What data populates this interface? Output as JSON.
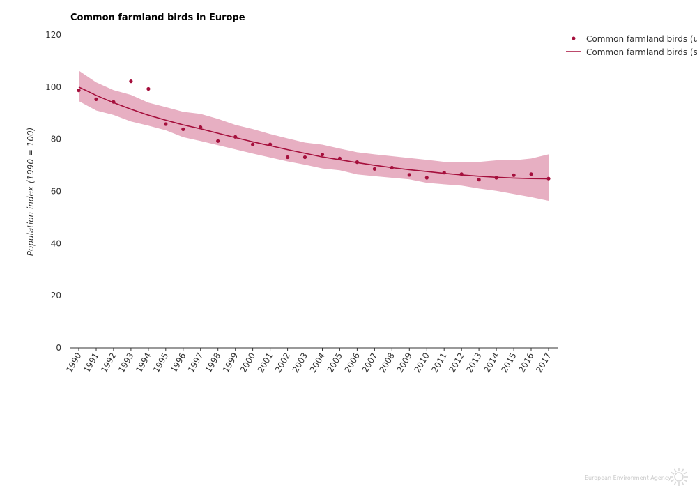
{
  "chart_data": {
    "type": "line",
    "title": "Common farmland birds in Europe",
    "ylabel": "Population index (1990 = 100)",
    "xlabel": "",
    "ylim": [
      0,
      120
    ],
    "yticks": [
      0,
      20,
      40,
      60,
      80,
      100,
      120
    ],
    "grid": false,
    "legend_position": "top-right",
    "categories": [
      "1990",
      "1991",
      "1992",
      "1993",
      "1994",
      "1995",
      "1996",
      "1997",
      "1998",
      "1999",
      "2000",
      "2001",
      "2002",
      "2003",
      "2004",
      "2005",
      "2006",
      "2007",
      "2008",
      "2009",
      "2010",
      "2011",
      "2012",
      "2013",
      "2014",
      "2015",
      "2016",
      "2017"
    ],
    "series": [
      {
        "name": "Common farmland birds (u",
        "kind": "points",
        "color": "#a50f3c",
        "values": [
          98.7,
          95.3,
          94.3,
          102.2,
          99.3,
          85.8,
          83.8,
          84.6,
          79.3,
          80.9,
          78.0,
          78.0,
          73.1,
          73.1,
          74.1,
          72.6,
          71.2,
          68.6,
          69.1,
          66.3,
          65.2,
          67.2,
          66.6,
          64.5,
          65.2,
          66.2,
          66.6,
          64.9
        ]
      },
      {
        "name": "Common farmland birds (s",
        "kind": "line",
        "color": "#a50f3c",
        "values": [
          100.0,
          96.8,
          94.0,
          91.5,
          89.2,
          87.3,
          85.5,
          84.0,
          82.3,
          80.6,
          79.0,
          77.5,
          76.0,
          74.6,
          73.2,
          72.1,
          71.0,
          70.0,
          69.1,
          68.3,
          67.6,
          66.9,
          66.3,
          65.8,
          65.4,
          65.1,
          64.9,
          64.8
        ]
      },
      {
        "name": "",
        "kind": "band",
        "color": "#e7afc2",
        "upper": [
          106.3,
          101.8,
          98.8,
          97.0,
          94.0,
          92.3,
          90.5,
          89.7,
          87.8,
          85.5,
          83.9,
          82.0,
          80.3,
          78.7,
          77.9,
          76.4,
          75.0,
          74.2,
          73.5,
          72.8,
          72.1,
          71.3,
          71.3,
          71.3,
          71.9,
          71.9,
          72.6,
          74.2
        ],
        "lower": [
          94.6,
          91.0,
          89.3,
          86.8,
          85.2,
          83.4,
          80.8,
          79.3,
          77.7,
          76.1,
          74.5,
          73.0,
          71.5,
          70.2,
          68.8,
          68.1,
          66.5,
          65.8,
          65.2,
          64.6,
          63.3,
          62.7,
          62.2,
          61.1,
          60.2,
          59.0,
          57.8,
          56.4
        ]
      }
    ]
  },
  "credit": "European Environment Agency"
}
